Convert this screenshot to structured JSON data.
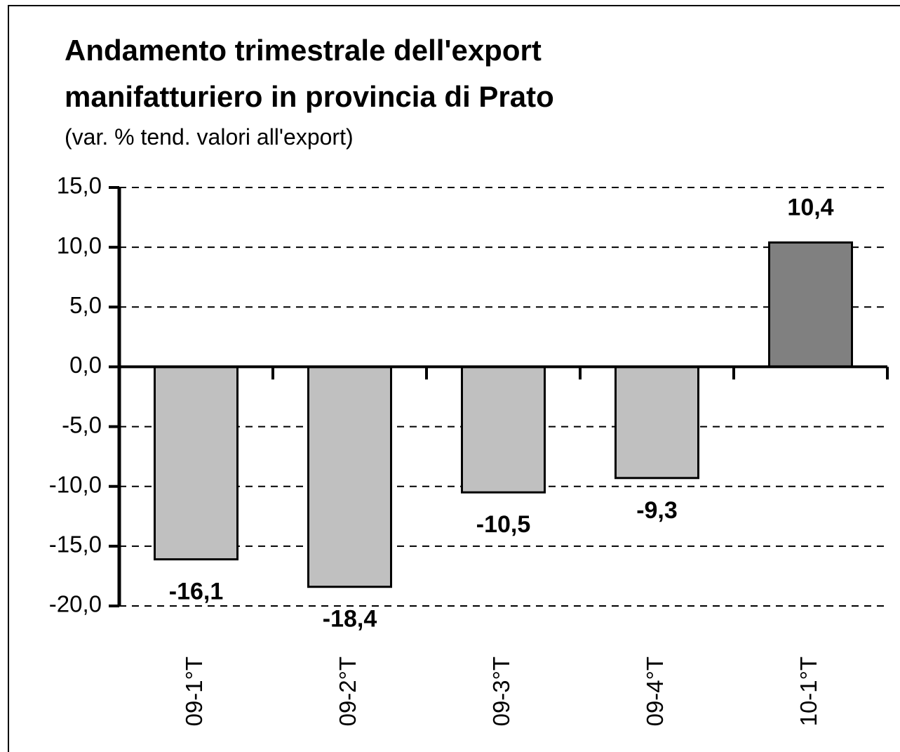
{
  "chart_data": {
    "type": "bar",
    "title": [
      "Andamento trimestrale dell'export",
      "manifatturiero in provincia di Prato"
    ],
    "subtitle": "(var. % tend. valori all'export)",
    "categories": [
      "09-1°T",
      "09-2°T",
      "09-3°T",
      "09-4°T",
      "10-1°T"
    ],
    "values": [
      -16.1,
      -18.4,
      -10.5,
      -9.3,
      10.4
    ],
    "value_labels": [
      "-16,1",
      "-18,4",
      "-10,5",
      "-9,3",
      "10,4"
    ],
    "colors": [
      "#c0c0c0",
      "#c0c0c0",
      "#c0c0c0",
      "#c0c0c0",
      "#808080"
    ],
    "ylim": [
      -20,
      15
    ],
    "yticks": [
      {
        "value": -20,
        "label": "-20,0"
      },
      {
        "value": -15,
        "label": "-15,0"
      },
      {
        "value": -10,
        "label": "-10,0"
      },
      {
        "value": -5,
        "label": "-5,0"
      },
      {
        "value": 0,
        "label": "0,0"
      },
      {
        "value": 5,
        "label": "5,0"
      },
      {
        "value": 10,
        "label": "10,0"
      },
      {
        "value": 15,
        "label": "15,0"
      }
    ],
    "grid": true
  }
}
